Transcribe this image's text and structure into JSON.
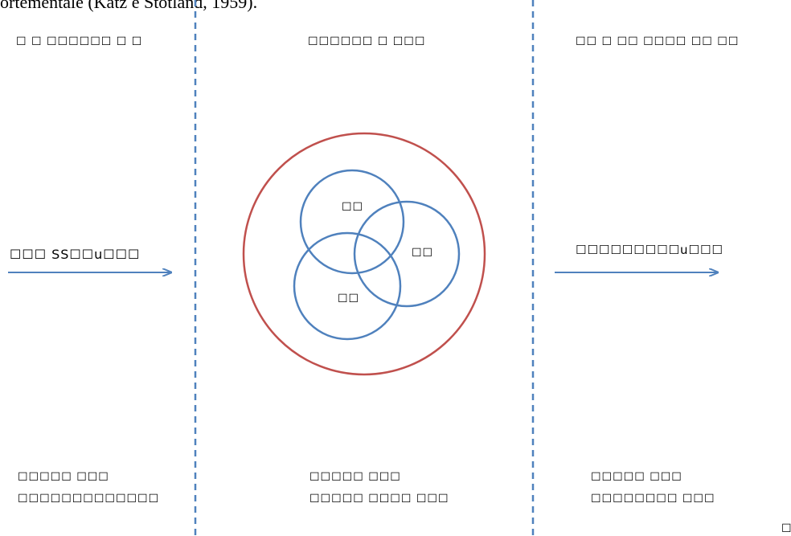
{
  "caption": "ortementale (Katz e Stotland, 1959).",
  "columns": [
    {
      "id": "left",
      "title": "☐ ☐ ☐☐☐☐☐☐ ☐ ☐",
      "arrow_label": "☐☐☐ SS☐☐u☐☐☐",
      "bottom_line1": "☐☐☐☐☐ ☐☐☐",
      "bottom_line2": "☐☐☐☐☐☐☐☐☐☐☐☐☐"
    },
    {
      "id": "middle",
      "title": "☐☐☐☐☐☐ ☐ ☐☐☐",
      "bottom_line1": "☐☐☐☐☐ ☐☐☐",
      "bottom_line2": "☐☐☐☐☐ ☐☐☐☐ ☐☐☐"
    },
    {
      "id": "right",
      "title": "☐☐ ☐  ☐☐ ☐☐☐☐  ☐☐ ☐☐",
      "arrow_label": "☐☐☐☐☐☐☐☐☐u☐☐☐",
      "bottom_line1": "☐☐☐☐☐ ☐☐☐",
      "bottom_line2": "☐☐☐☐☐☐☐☐  ☐☐☐"
    }
  ],
  "venn": {
    "circle_top": "☐☐",
    "circle_right": "☐☐",
    "circle_bottom": "☐☐"
  },
  "corner_glyph": "☐",
  "colors": {
    "divider": "#4f81bd",
    "arrow": "#4f81bd",
    "inner_circles": "#4f81bd",
    "outer_circle": "#c0504d"
  }
}
